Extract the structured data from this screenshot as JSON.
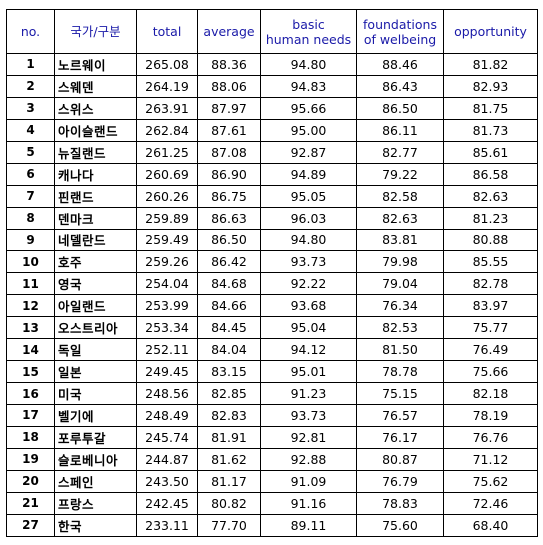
{
  "header": {
    "no": "no.",
    "country": "국가/구분",
    "total": "total",
    "average": "average",
    "basic_line1": "basic",
    "basic_line2": "human needs",
    "found_line1": "foundations",
    "found_line2": "of welbeing",
    "opportunity": "opportunity"
  },
  "rows": [
    {
      "rank": "1",
      "country": "노르웨이",
      "total": "265.08",
      "average": "88.36",
      "basic": "94.80",
      "found": "88.46",
      "opp": "81.82"
    },
    {
      "rank": "2",
      "country": "스웨덴",
      "total": "264.19",
      "average": "88.06",
      "basic": "94.83",
      "found": "86.43",
      "opp": "82.93"
    },
    {
      "rank": "3",
      "country": "스위스",
      "total": "263.91",
      "average": "87.97",
      "basic": "95.66",
      "found": "86.50",
      "opp": "81.75"
    },
    {
      "rank": "4",
      "country": "아이슬랜드",
      "total": "262.84",
      "average": "87.61",
      "basic": "95.00",
      "found": "86.11",
      "opp": "81.73"
    },
    {
      "rank": "5",
      "country": "뉴질랜드",
      "total": "261.25",
      "average": "87.08",
      "basic": "92.87",
      "found": "82.77",
      "opp": "85.61"
    },
    {
      "rank": "6",
      "country": "캐나다",
      "total": "260.69",
      "average": "86.90",
      "basic": "94.89",
      "found": "79.22",
      "opp": "86.58"
    },
    {
      "rank": "7",
      "country": "핀랜드",
      "total": "260.26",
      "average": "86.75",
      "basic": "95.05",
      "found": "82.58",
      "opp": "82.63"
    },
    {
      "rank": "8",
      "country": "덴마크",
      "total": "259.89",
      "average": "86.63",
      "basic": "96.03",
      "found": "82.63",
      "opp": "81.23"
    },
    {
      "rank": "9",
      "country": "네델란드",
      "total": "259.49",
      "average": "86.50",
      "basic": "94.80",
      "found": "83.81",
      "opp": "80.88"
    },
    {
      "rank": "10",
      "country": "호주",
      "total": "259.26",
      "average": "86.42",
      "basic": "93.73",
      "found": "79.98",
      "opp": "85.55"
    },
    {
      "rank": "11",
      "country": "영국",
      "total": "254.04",
      "average": "84.68",
      "basic": "92.22",
      "found": "79.04",
      "opp": "82.78"
    },
    {
      "rank": "12",
      "country": "아일랜드",
      "total": "253.99",
      "average": "84.66",
      "basic": "93.68",
      "found": "76.34",
      "opp": "83.97"
    },
    {
      "rank": "13",
      "country": "오스트리아",
      "total": "253.34",
      "average": "84.45",
      "basic": "95.04",
      "found": "82.53",
      "opp": "75.77"
    },
    {
      "rank": "14",
      "country": "독일",
      "total": "252.11",
      "average": "84.04",
      "basic": "94.12",
      "found": "81.50",
      "opp": "76.49"
    },
    {
      "rank": "15",
      "country": "일본",
      "total": "249.45",
      "average": "83.15",
      "basic": "95.01",
      "found": "78.78",
      "opp": "75.66"
    },
    {
      "rank": "16",
      "country": "미국",
      "total": "248.56",
      "average": "82.85",
      "basic": "91.23",
      "found": "75.15",
      "opp": "82.18"
    },
    {
      "rank": "17",
      "country": "벨기에",
      "total": "248.49",
      "average": "82.83",
      "basic": "93.73",
      "found": "76.57",
      "opp": "78.19"
    },
    {
      "rank": "18",
      "country": "포루투갈",
      "total": "245.74",
      "average": "81.91",
      "basic": "92.81",
      "found": "76.17",
      "opp": "76.76"
    },
    {
      "rank": "19",
      "country": "슬로베니아",
      "total": "244.87",
      "average": "81.62",
      "basic": "92.88",
      "found": "80.87",
      "opp": "71.12"
    },
    {
      "rank": "20",
      "country": "스페인",
      "total": "243.50",
      "average": "81.17",
      "basic": "91.09",
      "found": "76.79",
      "opp": "75.62"
    },
    {
      "rank": "21",
      "country": "프랑스",
      "total": "242.45",
      "average": "80.82",
      "basic": "91.16",
      "found": "78.83",
      "opp": "72.46"
    },
    {
      "rank": "27",
      "country": "한국",
      "total": "233.11",
      "average": "77.70",
      "basic": "89.11",
      "found": "75.60",
      "opp": "68.40"
    }
  ],
  "colors": {
    "header_text": "#1a1aa8",
    "border": "#000000",
    "body_text": "#000000"
  }
}
